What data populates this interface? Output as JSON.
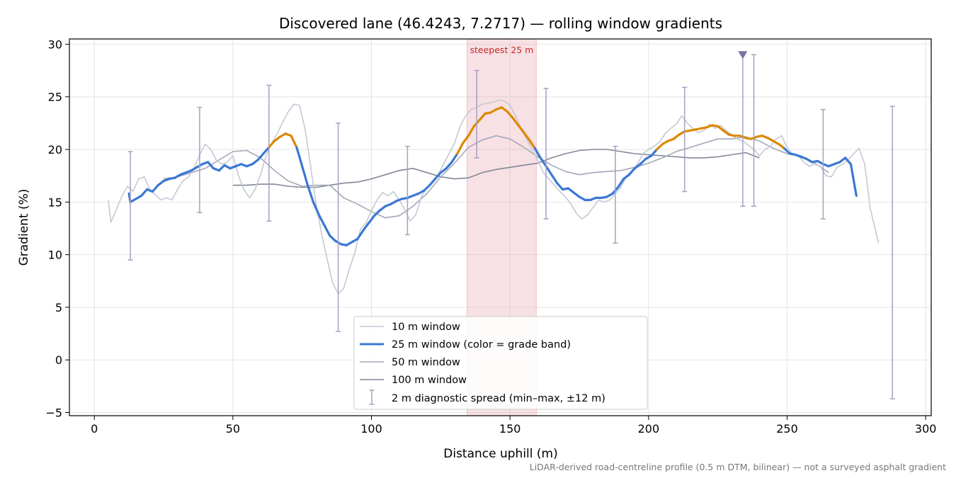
{
  "chart_data": {
    "type": "line",
    "title": "Discovered lane (46.4243, 7.2717) — rolling window gradients",
    "xlabel": "Distance uphill (m)",
    "ylabel": "Gradient (%)",
    "xlim": [
      -9,
      302
    ],
    "ylim": [
      -5.3,
      30.5
    ],
    "x_ticks": [
      0,
      50,
      100,
      150,
      200,
      250,
      300
    ],
    "y_ticks": [
      -5,
      0,
      5,
      10,
      15,
      20,
      25,
      30
    ],
    "x_tick_labels": [
      "0",
      "50",
      "100",
      "150",
      "200",
      "250",
      "300"
    ],
    "y_tick_labels": [
      "−5",
      "0",
      "5",
      "10",
      "15",
      "20",
      "25",
      "30"
    ],
    "grid": true,
    "legend_position": "lower-center",
    "footnote": "LiDAR-derived road-centreline profile (0.5 m DTM, bilinear) — not a surveyed asphalt gradient",
    "highlight_band": {
      "x_start": 134.5,
      "x_end": 159.5,
      "label": "steepest 25 m",
      "color": "#e8a1ac"
    },
    "marker": {
      "x": 234,
      "y": 29,
      "color": "#7b6fa3"
    },
    "band_colors": {
      "below_20": "#3a78d4",
      "20_to_25": "#dd8800"
    },
    "series": [
      {
        "name": "10 m window",
        "color": "#c4c9d4",
        "x": [
          5,
          6,
          8,
          10,
          12,
          14,
          16,
          18,
          20,
          22,
          24,
          26,
          28,
          30,
          32,
          34,
          36,
          38,
          40,
          42,
          44,
          46,
          48,
          50,
          52,
          54,
          56,
          58,
          60,
          62,
          64,
          66,
          68,
          70,
          72,
          74,
          76,
          78,
          80,
          82,
          84,
          86,
          88,
          90,
          92,
          94,
          96,
          98,
          100,
          102,
          104,
          106,
          108,
          110,
          112,
          114,
          116,
          118,
          120,
          122,
          124,
          126,
          128,
          130,
          132,
          134,
          136,
          138,
          140,
          142,
          144,
          146,
          148,
          150,
          152,
          154,
          156,
          158,
          160,
          162,
          164,
          166,
          168,
          170,
          172,
          174,
          176,
          178,
          180,
          182,
          184,
          186,
          188,
          190,
          192,
          194,
          196,
          198,
          200,
          202,
          204,
          206,
          208,
          210,
          212,
          214,
          216,
          218,
          220,
          222,
          224,
          226,
          228,
          230,
          232,
          234,
          236,
          238,
          240,
          242,
          244,
          246,
          248,
          250,
          252,
          254,
          256,
          258,
          260,
          262,
          264,
          266,
          268,
          270,
          272,
          274,
          276,
          278,
          280,
          283
        ],
        "y": [
          15.2,
          13.1,
          14.3,
          15.6,
          16.5,
          16.0,
          17.2,
          17.4,
          16.2,
          15.7,
          15.2,
          15.4,
          15.2,
          16.2,
          17.0,
          17.4,
          18.2,
          19.5,
          20.5,
          20.0,
          19.0,
          18.6,
          18.8,
          19.4,
          17.5,
          16.2,
          15.4,
          16.2,
          17.6,
          19.4,
          20.6,
          21.5,
          22.6,
          23.6,
          24.3,
          24.2,
          22.0,
          18.5,
          14.8,
          12.0,
          9.6,
          7.3,
          6.3,
          6.8,
          8.6,
          10.2,
          12.4,
          13.0,
          14.2,
          15.2,
          15.9,
          15.6,
          16.0,
          15.2,
          14.3,
          13.2,
          13.8,
          15.5,
          16.4,
          16.8,
          17.6,
          18.6,
          19.6,
          20.6,
          22.2,
          23.2,
          23.8,
          24.0,
          24.3,
          24.4,
          24.5,
          24.7,
          24.6,
          24.2,
          23.2,
          22.0,
          21.0,
          20.0,
          19.0,
          17.8,
          17.2,
          16.6,
          16.0,
          15.5,
          14.8,
          13.9,
          13.4,
          13.8,
          14.5,
          15.2,
          15.0,
          15.2,
          15.8,
          16.4,
          17.4,
          18.0,
          18.6,
          19.6,
          20.0,
          20.3,
          20.7,
          21.5,
          22.0,
          22.4,
          23.2,
          22.5,
          22.0,
          21.6,
          21.8,
          22.4,
          22.0,
          22.3,
          21.8,
          21.4,
          21.0,
          20.8,
          20.4,
          20.0,
          19.4,
          20.0,
          20.3,
          21.0,
          21.3,
          20.2,
          19.6,
          19.4,
          18.8,
          18.4,
          18.6,
          18.4,
          17.5,
          17.4,
          18.3,
          18.6,
          19.0,
          19.6,
          20.1,
          18.6,
          14.4,
          11.1
        ]
      },
      {
        "name": "25 m window (color = grade band)",
        "color": "#3a78d4",
        "x": [
          12.5,
          13,
          15,
          17,
          19,
          21,
          23,
          25,
          27,
          29,
          31,
          33,
          35,
          37,
          39,
          41,
          43,
          45,
          47,
          49,
          51,
          53,
          55,
          57,
          59,
          61,
          63,
          65,
          67,
          69,
          71,
          73,
          75,
          77,
          79,
          81,
          83,
          85,
          87,
          89,
          91,
          93,
          95,
          97,
          99,
          101,
          103,
          105,
          107,
          109,
          111,
          113,
          115,
          117,
          119,
          121,
          123,
          125,
          127,
          129,
          131,
          133,
          135,
          137,
          139,
          141,
          143,
          145,
          147,
          149,
          151,
          153,
          155,
          157,
          159,
          161,
          163,
          165,
          167,
          169,
          171,
          173,
          175,
          177,
          179,
          181,
          183,
          185,
          187,
          189,
          191,
          193,
          195,
          197,
          199,
          201,
          203,
          205,
          207,
          209,
          211,
          213,
          215,
          217,
          219,
          221,
          223,
          225,
          227,
          229,
          231,
          233,
          235,
          237,
          239,
          241,
          243,
          245,
          247,
          249,
          251,
          253,
          255,
          257,
          259,
          261,
          263,
          265,
          267,
          269,
          271,
          273,
          275
        ],
        "y": [
          15.8,
          15.0,
          15.3,
          15.6,
          16.2,
          16.0,
          16.6,
          17.0,
          17.2,
          17.3,
          17.6,
          17.8,
          18.0,
          18.3,
          18.6,
          18.8,
          18.2,
          18.0,
          18.5,
          18.2,
          18.4,
          18.6,
          18.4,
          18.6,
          19.0,
          19.6,
          20.2,
          20.8,
          21.2,
          21.5,
          21.3,
          20.2,
          18.4,
          16.6,
          15.0,
          13.8,
          12.8,
          11.8,
          11.3,
          11.0,
          10.9,
          11.2,
          11.5,
          12.3,
          13.0,
          13.7,
          14.2,
          14.6,
          14.8,
          15.1,
          15.3,
          15.4,
          15.6,
          15.8,
          16.1,
          16.6,
          17.2,
          17.8,
          18.2,
          18.8,
          19.6,
          20.6,
          21.3,
          22.2,
          22.8,
          23.4,
          23.5,
          23.8,
          24.0,
          23.6,
          23.0,
          22.3,
          21.6,
          20.9,
          20.1,
          19.2,
          18.4,
          17.6,
          16.8,
          16.2,
          16.3,
          15.9,
          15.5,
          15.2,
          15.2,
          15.4,
          15.4,
          15.5,
          15.8,
          16.4,
          17.2,
          17.6,
          18.2,
          18.6,
          19.1,
          19.4,
          20.0,
          20.5,
          20.8,
          21.0,
          21.4,
          21.7,
          21.8,
          21.9,
          22.0,
          22.1,
          22.3,
          22.2,
          21.8,
          21.4,
          21.3,
          21.3,
          21.1,
          21.0,
          21.2,
          21.3,
          21.1,
          20.8,
          20.5,
          20.1,
          19.6,
          19.5,
          19.3,
          19.1,
          18.8,
          18.9,
          18.6,
          18.4,
          18.6,
          18.8,
          19.2,
          18.6,
          15.6
        ]
      },
      {
        "name": "50 m window",
        "color": "#a3a8ba",
        "x": [
          25,
          30,
          35,
          40,
          45,
          50,
          55,
          60,
          65,
          70,
          75,
          80,
          85,
          90,
          95,
          100,
          105,
          110,
          115,
          120,
          125,
          130,
          135,
          140,
          145,
          150,
          155,
          160,
          165,
          170,
          175,
          180,
          185,
          190,
          195,
          200,
          205,
          210,
          215,
          220,
          225,
          230,
          235,
          240,
          245,
          250,
          255,
          260,
          265
        ],
        "y": [
          17.2,
          17.4,
          17.8,
          18.2,
          19.0,
          19.8,
          19.9,
          19.2,
          18.0,
          17.0,
          16.5,
          16.6,
          16.6,
          15.4,
          14.8,
          14.1,
          13.5,
          13.7,
          14.6,
          15.8,
          17.4,
          18.7,
          20.2,
          20.9,
          21.3,
          21.0,
          20.2,
          19.3,
          18.5,
          17.9,
          17.6,
          17.8,
          17.9,
          18.0,
          18.3,
          18.7,
          19.2,
          19.8,
          20.2,
          20.6,
          21.0,
          21.0,
          21.2,
          20.8,
          20.1,
          19.6,
          19.4,
          18.7,
          17.8
        ]
      },
      {
        "name": "100 m window",
        "color": "#828896",
        "x": [
          50,
          55,
          60,
          65,
          70,
          75,
          80,
          85,
          90,
          95,
          100,
          105,
          110,
          115,
          120,
          125,
          130,
          135,
          140,
          145,
          150,
          155,
          160,
          165,
          170,
          175,
          180,
          185,
          190,
          195,
          200,
          205,
          210,
          215,
          220,
          225,
          230,
          235,
          240
        ],
        "y": [
          16.6,
          16.6,
          16.7,
          16.7,
          16.5,
          16.4,
          16.4,
          16.6,
          16.8,
          16.9,
          17.2,
          17.6,
          18.0,
          18.2,
          17.8,
          17.4,
          17.2,
          17.3,
          17.8,
          18.1,
          18.3,
          18.5,
          18.7,
          19.2,
          19.6,
          19.9,
          20.0,
          20.0,
          19.8,
          19.6,
          19.5,
          19.4,
          19.3,
          19.2,
          19.2,
          19.3,
          19.5,
          19.7,
          19.2
        ]
      }
    ],
    "errorbars": {
      "name": "2 m diagnostic spread (min–max, ±12 m)",
      "color": "#a4a1c2",
      "bars": [
        {
          "x": 13,
          "low": 9.5,
          "high": 19.8
        },
        {
          "x": 38,
          "low": 14.0,
          "high": 24.0
        },
        {
          "x": 63,
          "low": 13.2,
          "high": 26.1
        },
        {
          "x": 88,
          "low": 2.7,
          "high": 22.5
        },
        {
          "x": 113,
          "low": 11.9,
          "high": 20.3
        },
        {
          "x": 138,
          "low": 19.2,
          "high": 27.5
        },
        {
          "x": 163,
          "low": 13.4,
          "high": 25.8
        },
        {
          "x": 188,
          "low": 11.1,
          "high": 20.3
        },
        {
          "x": 213,
          "low": 16.0,
          "high": 25.9
        },
        {
          "x": 238,
          "low": 14.6,
          "high": 29.0
        },
        {
          "x": 263,
          "low": 13.4,
          "high": 23.8
        },
        {
          "x": 288,
          "low": -3.7,
          "high": 24.1
        },
        {
          "x": 234,
          "low": 14.6,
          "high": 29.0
        }
      ]
    }
  }
}
